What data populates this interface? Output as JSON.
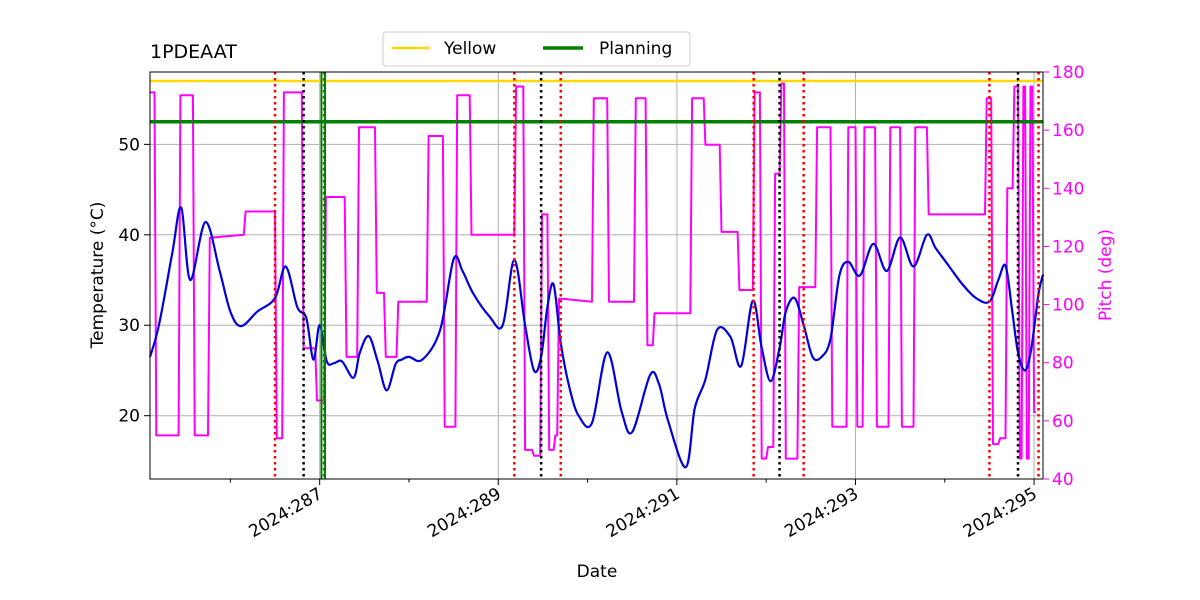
{
  "chart_data": {
    "type": "line",
    "title": "1PDEAAT",
    "xlabel": "Date",
    "ylabel": "Temperature ($^\\circ$C)",
    "ylabel_display": "Temperature (°C)",
    "y2label": "Pitch (deg)",
    "xlim": [
      285.1,
      295.1
    ],
    "ylim": [
      13,
      58
    ],
    "y2lim": [
      40,
      180
    ],
    "x_ticks": [
      286,
      287,
      288,
      289,
      290,
      291,
      292,
      293,
      294,
      295
    ],
    "x_tick_labels": [
      {
        "x": 287,
        "label": "2024:287"
      },
      {
        "x": 289,
        "label": "2024:289"
      },
      {
        "x": 291,
        "label": "2024:291"
      },
      {
        "x": 293,
        "label": "2024:293"
      },
      {
        "x": 295,
        "label": "2024:295"
      }
    ],
    "y_ticks": [
      20,
      30,
      40,
      50
    ],
    "y2_ticks": [
      40,
      60,
      80,
      100,
      120,
      140,
      160,
      180
    ],
    "grid": true,
    "legend": {
      "placement": "top-center",
      "entries": [
        {
          "name": "Yellow",
          "color": "#ffd700"
        },
        {
          "name": "Planning",
          "color": "#008000"
        }
      ]
    },
    "limits": [
      {
        "name": "Yellow",
        "value": 57.0,
        "color": "#ffd700"
      },
      {
        "name": "Planning",
        "value": 52.5,
        "color": "#008000"
      }
    ],
    "temperature_series": {
      "name": "1PDEAAT",
      "color": "#0000dd",
      "x": [
        285.1,
        285.2,
        285.35,
        285.45,
        285.55,
        285.72,
        285.88,
        286.0,
        286.12,
        286.3,
        286.5,
        286.62,
        286.75,
        286.85,
        286.93,
        287.0,
        287.08,
        287.16,
        287.25,
        287.38,
        287.45,
        287.55,
        287.65,
        287.75,
        287.85,
        287.92,
        288.0,
        288.15,
        288.35,
        288.5,
        288.6,
        288.72,
        288.9,
        289.05,
        289.18,
        289.3,
        289.4,
        289.48,
        289.55,
        289.62,
        289.7,
        289.8,
        289.9,
        290.05,
        290.22,
        290.38,
        290.5,
        290.7,
        290.8,
        290.9,
        291.1,
        291.2,
        291.32,
        291.45,
        291.6,
        291.72,
        291.85,
        291.95,
        292.05,
        292.15,
        292.22,
        292.32,
        292.42,
        292.52,
        292.62,
        292.72,
        292.82,
        292.92,
        293.05,
        293.2,
        293.35,
        293.5,
        293.65,
        293.8,
        293.9,
        294.05,
        294.2,
        294.35,
        294.5,
        294.6,
        294.68,
        294.75,
        294.82,
        294.9,
        294.97,
        295.05,
        295.1
      ],
      "values": [
        26.5,
        30,
        38,
        43,
        35,
        41.4,
        36,
        31.5,
        29.9,
        31.5,
        33,
        36.5,
        32,
        30.8,
        26.2,
        30,
        26,
        25.8,
        26,
        24.2,
        27,
        28.8,
        26,
        22.8,
        25.7,
        26.2,
        26.5,
        26.2,
        29.5,
        37.3,
        36,
        33.5,
        31,
        30,
        37.2,
        30,
        25,
        26.5,
        32,
        34.5,
        28,
        23,
        20,
        19.2,
        27,
        20.5,
        18.2,
        24.5,
        23.5,
        19.5,
        14.3,
        20.8,
        24,
        29.5,
        28.7,
        25.5,
        32.7,
        27.5,
        23.8,
        27.5,
        31.5,
        33,
        30,
        26.5,
        26.5,
        28.5,
        35.5,
        37,
        35.5,
        39,
        36,
        39.7,
        36.5,
        40,
        38.5,
        36.5,
        34.5,
        33,
        32.6,
        35,
        36.6,
        32,
        27,
        25,
        27.5,
        33.5,
        35.6
      ]
    },
    "pitch_series": {
      "name": "Pitch",
      "color": "#ff00ff",
      "x": [
        285.1,
        285.15,
        285.17,
        285.2,
        285.42,
        285.44,
        285.58,
        285.6,
        285.75,
        285.77,
        286.15,
        286.17,
        286.5,
        286.52,
        286.58,
        286.6,
        286.8,
        286.82,
        286.95,
        286.97,
        287.05,
        287.07,
        287.28,
        287.3,
        287.42,
        287.44,
        287.62,
        287.64,
        287.72,
        287.74,
        287.86,
        287.88,
        288.2,
        288.22,
        288.38,
        288.4,
        288.52,
        288.54,
        288.68,
        288.7,
        289.18,
        289.2,
        289.28,
        289.3,
        289.38,
        289.4,
        289.47,
        289.49,
        289.55,
        289.57,
        289.62,
        289.64,
        289.66,
        289.68,
        289.7,
        289.72,
        290.05,
        290.07,
        290.22,
        290.24,
        290.52,
        290.54,
        290.65,
        290.67,
        290.73,
        290.75,
        290.8,
        290.82,
        291.15,
        291.17,
        291.3,
        291.32,
        291.48,
        291.5,
        291.68,
        291.7,
        291.85,
        291.87,
        291.93,
        291.95,
        292.0,
        292.02,
        292.08,
        292.1,
        292.15,
        292.17,
        292.2,
        292.22,
        292.35,
        292.37,
        292.55,
        292.57,
        292.72,
        292.74,
        292.9,
        292.92,
        293.0,
        293.02,
        293.08,
        293.1,
        293.22,
        293.24,
        293.37,
        293.39,
        293.5,
        293.52,
        293.65,
        293.67,
        293.8,
        293.82,
        294.08,
        294.1,
        294.45,
        294.47,
        294.52,
        294.54,
        294.6,
        294.62,
        294.68,
        294.7,
        294.76,
        294.78,
        294.82,
        294.84,
        294.86,
        294.88,
        294.9,
        294.92,
        294.94,
        294.96,
        294.98,
        295.0,
        295.02
      ],
      "values": [
        173,
        173,
        55,
        55,
        55,
        172,
        172,
        55,
        55,
        123,
        124,
        132,
        132,
        54,
        54,
        173,
        173,
        85,
        85,
        67,
        67,
        137,
        137,
        82,
        82,
        161,
        161,
        104,
        104,
        82,
        82,
        101,
        101,
        158,
        158,
        58,
        58,
        172,
        172,
        124,
        124,
        175,
        175,
        50,
        50,
        48,
        48,
        131,
        131,
        50,
        50,
        55,
        55,
        102,
        102,
        102,
        101,
        171,
        171,
        101,
        101,
        171,
        171,
        86,
        86,
        97,
        97,
        97,
        97,
        171,
        171,
        155,
        155,
        125,
        125,
        105,
        105,
        173,
        173,
        47,
        47,
        51,
        51,
        145,
        145,
        176,
        176,
        47,
        47,
        106,
        106,
        161,
        161,
        58,
        58,
        161,
        161,
        58,
        58,
        161,
        161,
        58,
        58,
        161,
        161,
        58,
        58,
        161,
        161,
        131,
        131,
        131,
        131,
        171,
        171,
        52,
        52,
        54,
        54,
        140,
        140,
        175,
        175,
        47,
        47,
        175,
        175,
        47,
        47,
        175,
        175,
        63,
        63
      ]
    },
    "event_lines": [
      {
        "x": 286.5,
        "color": "#ff0000"
      },
      {
        "x": 286.82,
        "color": "#000000"
      },
      {
        "x": 287.05,
        "color": "#ff0000"
      },
      {
        "x": 289.18,
        "color": "#ff0000"
      },
      {
        "x": 289.48,
        "color": "#000000"
      },
      {
        "x": 289.7,
        "color": "#ff0000"
      },
      {
        "x": 291.86,
        "color": "#ff0000"
      },
      {
        "x": 292.15,
        "color": "#000000"
      },
      {
        "x": 292.42,
        "color": "#ff0000"
      },
      {
        "x": 294.5,
        "color": "#ff0000"
      },
      {
        "x": 294.82,
        "color": "#000000"
      },
      {
        "x": 295.05,
        "color": "#ff0000"
      }
    ],
    "planning_markers": [
      {
        "x": 287.02,
        "color": "#008000"
      },
      {
        "x": 287.06,
        "color": "#008000"
      }
    ],
    "colors": {
      "axis": "#000000",
      "grid": "#b0b0b0",
      "pitch_axis": "#ff00ff"
    }
  }
}
